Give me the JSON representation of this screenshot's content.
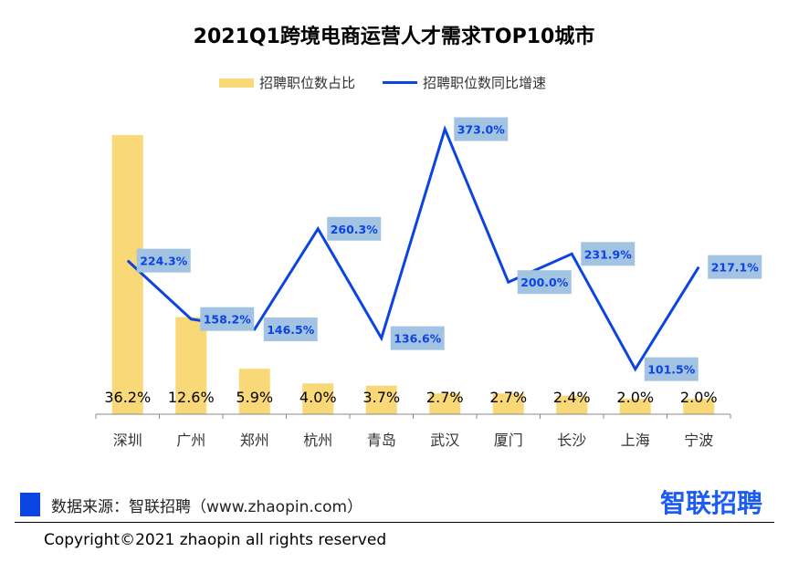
{
  "chart_data": {
    "type": "bar+line",
    "title": "2021Q1跨境电商运营人才需求TOP10城市",
    "categories": [
      "深圳",
      "广州",
      "郑州",
      "杭州",
      "青岛",
      "武汉",
      "厦门",
      "长沙",
      "上海",
      "宁波"
    ],
    "series": [
      {
        "name": "招聘职位数占比",
        "type": "bar",
        "values": [
          36.2,
          12.6,
          5.9,
          4.0,
          3.7,
          2.7,
          2.7,
          2.4,
          2.0,
          2.0
        ],
        "labels": [
          "36.2%",
          "12.6%",
          "5.9%",
          "4.0%",
          "3.7%",
          "2.7%",
          "2.7%",
          "2.4%",
          "2.0%",
          "2.0%"
        ],
        "color": "#f9d878"
      },
      {
        "name": "招聘职位数同比增速",
        "type": "line",
        "values": [
          224.3,
          158.2,
          146.5,
          260.3,
          136.6,
          373.0,
          200.0,
          231.9,
          101.5,
          217.1
        ],
        "labels": [
          "224.3%",
          "158.2%",
          "146.5%",
          "260.3%",
          "136.6%",
          "373.0%",
          "200.0%",
          "231.9%",
          "101.5%",
          "217.1%"
        ],
        "color": "#0b44e0"
      }
    ],
    "legend": "top"
  },
  "footer": {
    "source": "数据来源：智联招聘（www.zhaopin.com）",
    "logo": "智联招聘",
    "copyright": "Copyright©2021 zhaopin all rights reserved"
  }
}
